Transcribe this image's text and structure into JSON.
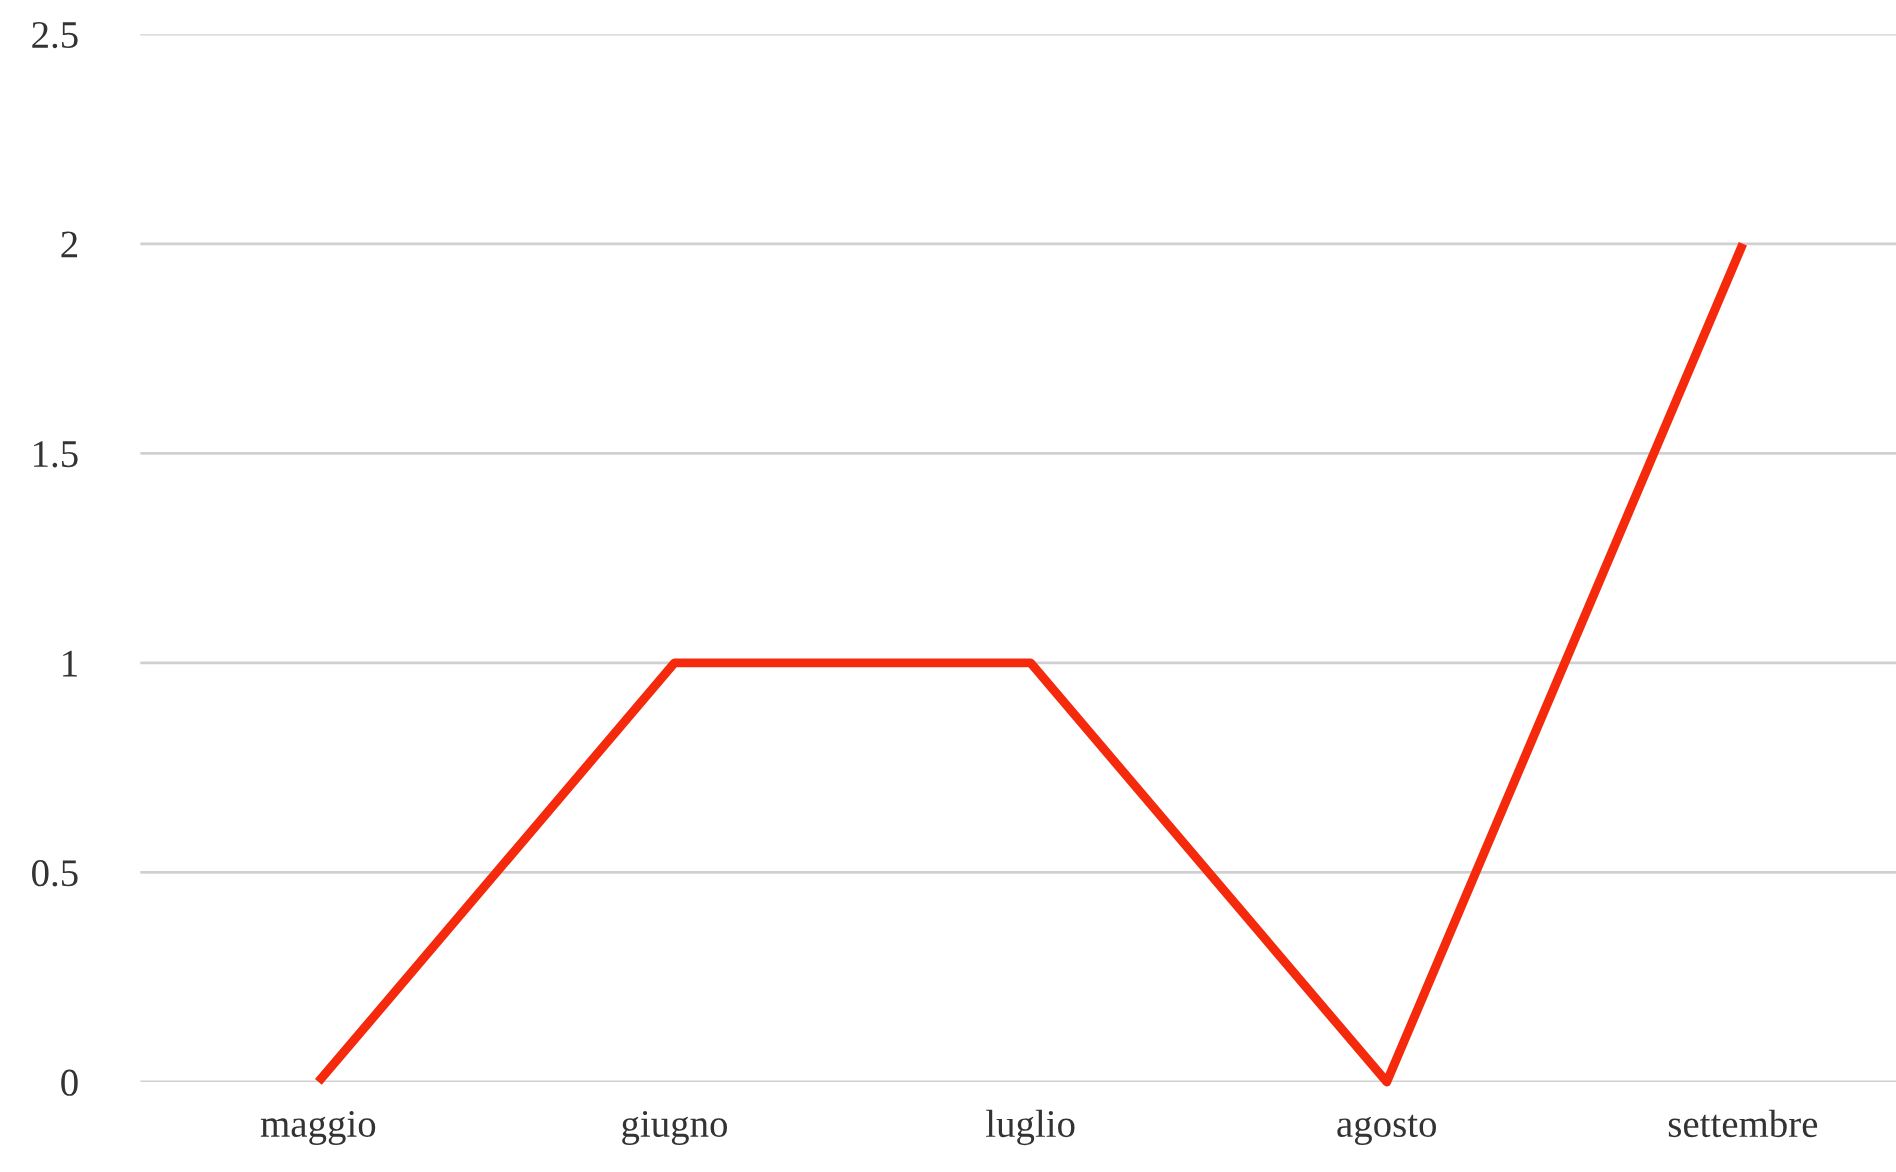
{
  "chart_data": {
    "type": "line",
    "categories": [
      "maggio",
      "giugno",
      "luglio",
      "agosto",
      "settembre"
    ],
    "series": [
      {
        "color": "#f52a0c",
        "values": [
          0,
          1,
          1,
          0,
          2
        ]
      }
    ],
    "ylim": [
      0,
      2.5
    ],
    "yticks": [
      0,
      0.5,
      1,
      1.5,
      2,
      2.5
    ],
    "grid": "y",
    "legend": false,
    "marker": "none",
    "line_style": "solid"
  }
}
